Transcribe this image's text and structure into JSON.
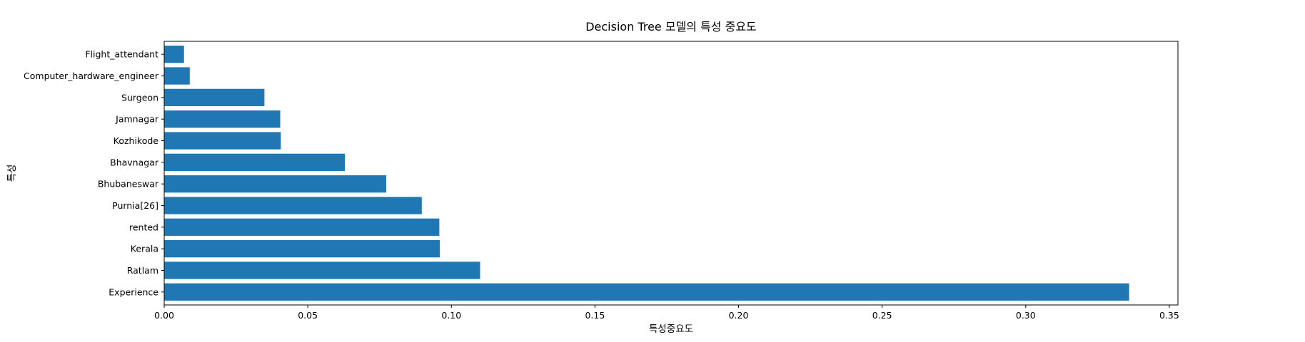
{
  "chart_data": {
    "type": "bar",
    "orientation": "horizontal",
    "title": "Decision Tree 모델의 특성 중요도",
    "xlabel": "특성중요도",
    "ylabel": "특성",
    "categories": [
      "Experience",
      "Ratlam",
      "Kerala",
      "rented",
      "Purnia[26]",
      "Bhubaneswar",
      "Bhavnagar",
      "Kozhikode",
      "Jamnagar",
      "Surgeon",
      "Computer_hardware_engineer",
      "Flight_attendant"
    ],
    "values": [
      0.336,
      0.11,
      0.096,
      0.0958,
      0.0897,
      0.0773,
      0.0629,
      0.0406,
      0.0404,
      0.0349,
      0.0089,
      0.0069
    ],
    "xlim": [
      0,
      0.353
    ],
    "xticks": [
      "0.00",
      "0.05",
      "0.10",
      "0.15",
      "0.20",
      "0.25",
      "0.30",
      "0.35"
    ],
    "bar_color": "#1f77b4",
    "grid": false
  }
}
